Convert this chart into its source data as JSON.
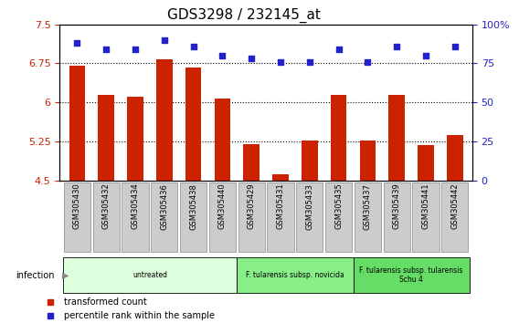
{
  "title": "GDS3298 / 232145_at",
  "categories": [
    "GSM305430",
    "GSM305432",
    "GSM305434",
    "GSM305436",
    "GSM305438",
    "GSM305440",
    "GSM305429",
    "GSM305431",
    "GSM305433",
    "GSM305435",
    "GSM305437",
    "GSM305439",
    "GSM305441",
    "GSM305442"
  ],
  "bar_values": [
    6.7,
    6.15,
    6.12,
    6.82,
    6.67,
    6.07,
    5.2,
    4.63,
    5.28,
    6.15,
    5.28,
    6.15,
    5.18,
    5.38
  ],
  "scatter_values": [
    88,
    84,
    84,
    90,
    86,
    80,
    78,
    76,
    76,
    84,
    76,
    86,
    80,
    86
  ],
  "ylim_left": [
    4.5,
    7.5
  ],
  "ylim_right": [
    0,
    100
  ],
  "yticks_left": [
    4.5,
    5.25,
    6.0,
    6.75,
    7.5
  ],
  "ytick_labels_left": [
    "4.5",
    "5.25",
    "6",
    "6.75",
    "7.5"
  ],
  "yticks_right": [
    0,
    25,
    50,
    75,
    100
  ],
  "ytick_labels_right": [
    "0",
    "25",
    "50",
    "75",
    "100%"
  ],
  "bar_color": "#cc2200",
  "scatter_color": "#2222cc",
  "dotted_lines": [
    5.25,
    6.0,
    6.75
  ],
  "groups": [
    {
      "label": "untreated",
      "start": 0,
      "end": 6,
      "color": "#ddffdd"
    },
    {
      "label": "F. tularensis subsp. novicida",
      "start": 6,
      "end": 10,
      "color": "#88ee88"
    },
    {
      "label": "F. tularensis subsp. tularensis\nSchu 4",
      "start": 10,
      "end": 14,
      "color": "#66dd66"
    }
  ],
  "infection_label": "infection",
  "legend_items": [
    {
      "label": "transformed count",
      "color": "#cc2200"
    },
    {
      "label": "percentile rank within the sample",
      "color": "#2222cc"
    }
  ],
  "bg_color": "#ffffff",
  "tick_label_color_left": "#cc2200",
  "tick_label_color_right": "#2222cc",
  "title_fontsize": 11,
  "tick_fontsize": 8,
  "bar_width": 0.55,
  "xlim": [
    -0.6,
    13.6
  ],
  "tick_box_color": "#cccccc",
  "tick_box_edge": "#888888"
}
